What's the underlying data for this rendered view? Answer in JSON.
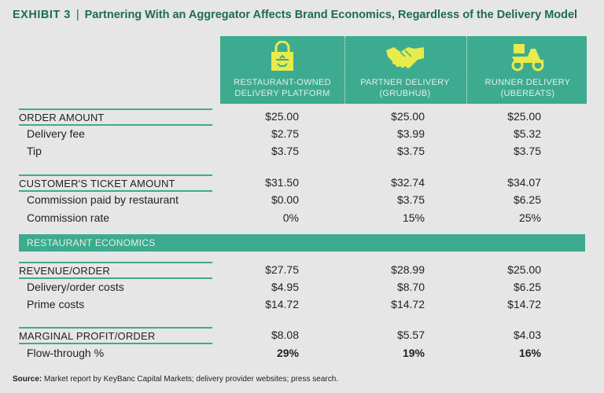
{
  "title": {
    "exhibit": "EXHIBIT 3",
    "separator": "|",
    "text": "Partnering With an Aggregator Affects Brand Economics, Regardless of the Delivery Model"
  },
  "columns": [
    {
      "line1": "RESTAURANT-OWNED",
      "line2": "DELIVERY PLATFORM",
      "icon": "bag-icon"
    },
    {
      "line1": "PARTNER DELIVERY",
      "line2": "(GRUBHUB)",
      "icon": "handshake-icon"
    },
    {
      "line1": "RUNNER DELIVERY",
      "line2": "(UBEREATS)",
      "icon": "scooter-icon"
    }
  ],
  "sections": {
    "order_amount": {
      "label": "ORDER AMOUNT",
      "values": [
        "$25.00",
        "$25.00",
        "$25.00"
      ]
    },
    "delivery_fee": {
      "label": "Delivery fee",
      "values": [
        "$2.75",
        "$3.99",
        "$5.32"
      ]
    },
    "tip": {
      "label": "Tip",
      "values": [
        "$3.75",
        "$3.75",
        "$3.75"
      ]
    },
    "ticket": {
      "label": "CUSTOMER'S TICKET AMOUNT",
      "values": [
        "$31.50",
        "$32.74",
        "$34.07"
      ]
    },
    "commission_paid": {
      "label": "Commission paid by restaurant",
      "values": [
        "$0.00",
        "$3.75",
        "$6.25"
      ]
    },
    "commission_rate": {
      "label": "Commission rate",
      "values": [
        "0%",
        "15%",
        "25%"
      ]
    },
    "band": {
      "label": "RESTAURANT ECONOMICS"
    },
    "revenue": {
      "label": "REVENUE/ORDER",
      "values": [
        "$27.75",
        "$28.99",
        "$25.00"
      ]
    },
    "delivery_costs": {
      "label": "Delivery/order costs",
      "values": [
        "$4.95",
        "$8.70",
        "$6.25"
      ]
    },
    "prime_costs": {
      "label": "Prime costs",
      "values": [
        "$14.72",
        "$14.72",
        "$14.72"
      ]
    },
    "margin": {
      "label": "MARGINAL PROFIT/ORDER",
      "values": [
        "$8.08",
        "$5.57",
        "$4.03"
      ]
    },
    "flow": {
      "label": "Flow-through %",
      "values": [
        "29%",
        "19%",
        "16%"
      ]
    }
  },
  "source": {
    "label": "Source:",
    "text": "Market report by KeyBanc Capital Markets; delivery provider websites; press search."
  },
  "colors": {
    "accent": "#3dab8f",
    "title": "#1c6e4e",
    "icon": "#e8ec4a"
  }
}
